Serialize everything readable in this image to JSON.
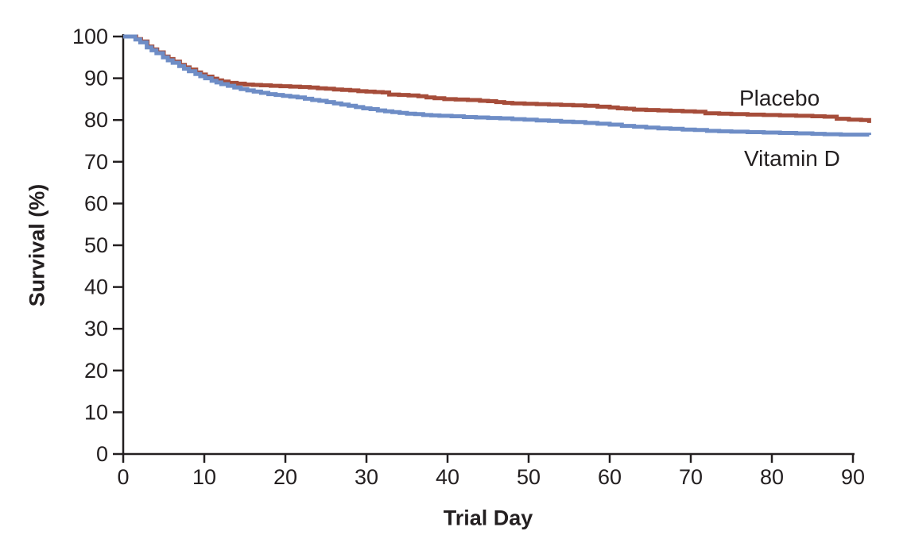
{
  "figure": {
    "background": "#ffffff",
    "text_color": "#231f20"
  },
  "chart_data": {
    "type": "line",
    "subtype": "kaplan-meier-step",
    "title": "",
    "xlabel": "Trial Day",
    "ylabel": "Survival (%)",
    "xlim": [
      0,
      90
    ],
    "ylim": [
      0,
      100
    ],
    "xticks": [
      0,
      10,
      20,
      30,
      40,
      50,
      60,
      70,
      80,
      90
    ],
    "yticks": [
      0,
      10,
      20,
      30,
      40,
      50,
      60,
      70,
      80,
      90,
      100
    ],
    "grid": false,
    "legend_position": "end-of-line-labels",
    "axis_color": "#231f20",
    "series": [
      {
        "name": "Placebo",
        "color": "#a64d3a",
        "end_value_pct": 79.3,
        "points": [
          [
            0,
            100
          ],
          [
            1.6,
            99.4
          ],
          [
            2.2,
            98.8
          ],
          [
            3,
            97.6
          ],
          [
            3.6,
            96.9
          ],
          [
            4.2,
            96.2
          ],
          [
            5,
            95.2
          ],
          [
            5.6,
            94.6
          ],
          [
            6.2,
            94
          ],
          [
            7,
            93.2
          ],
          [
            7.6,
            92.6
          ],
          [
            8.2,
            92.1
          ],
          [
            9,
            91.4
          ],
          [
            9.6,
            90.9
          ],
          [
            10.2,
            90.4
          ],
          [
            11,
            89.9
          ],
          [
            11.6,
            89.5
          ],
          [
            12.2,
            89.2
          ],
          [
            13,
            88.9
          ],
          [
            14,
            88.7
          ],
          [
            15,
            88.5
          ],
          [
            16,
            88.4
          ],
          [
            17,
            88.3
          ],
          [
            18.2,
            88.2
          ],
          [
            19.4,
            88.1
          ],
          [
            20.6,
            88
          ],
          [
            21.8,
            87.9
          ],
          [
            23,
            87.8
          ],
          [
            24,
            87.6
          ],
          [
            25,
            87.5
          ],
          [
            26,
            87.3
          ],
          [
            27,
            87.2
          ],
          [
            28,
            87.1
          ],
          [
            29,
            86.9
          ],
          [
            30,
            86.8
          ],
          [
            31,
            86.7
          ],
          [
            32,
            86.6
          ],
          [
            32.8,
            86.1
          ],
          [
            34,
            86
          ],
          [
            35.2,
            85.9
          ],
          [
            36.4,
            85.7
          ],
          [
            37.4,
            85.4
          ],
          [
            38.4,
            85.2
          ],
          [
            39.6,
            85
          ],
          [
            41,
            84.9
          ],
          [
            42.5,
            84.8
          ],
          [
            44,
            84.6
          ],
          [
            45,
            84.5
          ],
          [
            46,
            84.3
          ],
          [
            47,
            84.1
          ],
          [
            48,
            84
          ],
          [
            49.5,
            83.9
          ],
          [
            51,
            83.8
          ],
          [
            52.5,
            83.7
          ],
          [
            54,
            83.6
          ],
          [
            55.5,
            83.5
          ],
          [
            57,
            83.4
          ],
          [
            58.5,
            83.2
          ],
          [
            60,
            83
          ],
          [
            61,
            82.8
          ],
          [
            62,
            82.7
          ],
          [
            63,
            82.5
          ],
          [
            64.5,
            82.4
          ],
          [
            66,
            82.3
          ],
          [
            67.5,
            82.2
          ],
          [
            69,
            82.1
          ],
          [
            70.5,
            82
          ],
          [
            71.8,
            81.6
          ],
          [
            73.5,
            81.5
          ],
          [
            75,
            81.4
          ],
          [
            77,
            81.3
          ],
          [
            79,
            81.2
          ],
          [
            81,
            81.1
          ],
          [
            83,
            81
          ],
          [
            85,
            80.9
          ],
          [
            86.5,
            80.8
          ],
          [
            88,
            80.3
          ],
          [
            89.5,
            80.1
          ],
          [
            91,
            80
          ],
          [
            92,
            79.3
          ]
        ]
      },
      {
        "name": "Vitamin D",
        "color": "#6e8dc6",
        "end_value_pct": 76.4,
        "points": [
          [
            0,
            100
          ],
          [
            1.5,
            99.3
          ],
          [
            2.1,
            98.6
          ],
          [
            2.9,
            97.4
          ],
          [
            3.5,
            96.7
          ],
          [
            4.1,
            96
          ],
          [
            4.9,
            95
          ],
          [
            5.5,
            94.3
          ],
          [
            6.1,
            93.7
          ],
          [
            6.9,
            92.9
          ],
          [
            7.5,
            92.3
          ],
          [
            8.1,
            91.7
          ],
          [
            8.9,
            91
          ],
          [
            9.5,
            90.5
          ],
          [
            10.1,
            90
          ],
          [
            10.9,
            89.4
          ],
          [
            11.5,
            89
          ],
          [
            12.1,
            88.6
          ],
          [
            12.9,
            88.2
          ],
          [
            13.7,
            87.8
          ],
          [
            14.5,
            87.4
          ],
          [
            15.3,
            87.1
          ],
          [
            16.1,
            86.8
          ],
          [
            17,
            86.5
          ],
          [
            17.9,
            86.2
          ],
          [
            18.8,
            86
          ],
          [
            19.7,
            85.8
          ],
          [
            20.6,
            85.6
          ],
          [
            21.5,
            85.4
          ],
          [
            22.4,
            85.1
          ],
          [
            23.3,
            84.8
          ],
          [
            24.2,
            84.6
          ],
          [
            25.1,
            84.3
          ],
          [
            26,
            84
          ],
          [
            26.9,
            83.7
          ],
          [
            27.8,
            83.4
          ],
          [
            28.7,
            83.1
          ],
          [
            29.6,
            82.8
          ],
          [
            30.5,
            82.6
          ],
          [
            31.4,
            82.3
          ],
          [
            32.3,
            82.1
          ],
          [
            33.2,
            81.9
          ],
          [
            34.1,
            81.7
          ],
          [
            35,
            81.5
          ],
          [
            36,
            81.4
          ],
          [
            37,
            81.2
          ],
          [
            38,
            81.1
          ],
          [
            39,
            81
          ],
          [
            40.5,
            80.9
          ],
          [
            42,
            80.7
          ],
          [
            43.5,
            80.6
          ],
          [
            45,
            80.5
          ],
          [
            46.5,
            80.4
          ],
          [
            48,
            80.2
          ],
          [
            49.5,
            80.1
          ],
          [
            51,
            79.9
          ],
          [
            52.5,
            79.8
          ],
          [
            54,
            79.6
          ],
          [
            55.5,
            79.5
          ],
          [
            57,
            79.3
          ],
          [
            58.5,
            79.1
          ],
          [
            60,
            78.9
          ],
          [
            61.5,
            78.6
          ],
          [
            63,
            78.4
          ],
          [
            64.5,
            78.2
          ],
          [
            66,
            78
          ],
          [
            67.5,
            77.9
          ],
          [
            69,
            77.7
          ],
          [
            70.5,
            77.6
          ],
          [
            72,
            77.4
          ],
          [
            73.5,
            77.3
          ],
          [
            75,
            77.2
          ],
          [
            77,
            77.1
          ],
          [
            79,
            77
          ],
          [
            81,
            76.9
          ],
          [
            83,
            76.8
          ],
          [
            85,
            76.7
          ],
          [
            86.5,
            76.6
          ],
          [
            88.5,
            76.5
          ],
          [
            92,
            76.4
          ]
        ]
      }
    ]
  }
}
